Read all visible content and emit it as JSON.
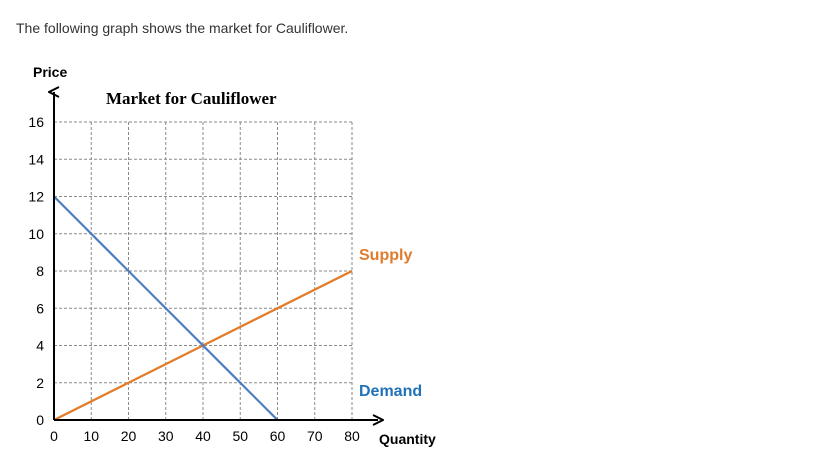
{
  "intro_text": "The following graph shows the market for Cauliflower.",
  "chart_data": {
    "type": "line",
    "title": "Market for Cauliflower",
    "xlabel": "Quantity",
    "ylabel": "Price",
    "xlim": [
      0,
      80
    ],
    "ylim": [
      0,
      16
    ],
    "x_ticks": [
      0,
      10,
      20,
      30,
      40,
      50,
      60,
      70,
      80
    ],
    "y_ticks": [
      0,
      2,
      4,
      6,
      8,
      10,
      12,
      14,
      16
    ],
    "grid": true,
    "series": [
      {
        "name": "Supply",
        "color": "#E07B2B",
        "points": [
          [
            0,
            0
          ],
          [
            80,
            8
          ]
        ]
      },
      {
        "name": "Demand",
        "color": "#4A7CC4",
        "label_color": "#2172B8",
        "points": [
          [
            0,
            12
          ],
          [
            60,
            0
          ]
        ]
      }
    ]
  }
}
